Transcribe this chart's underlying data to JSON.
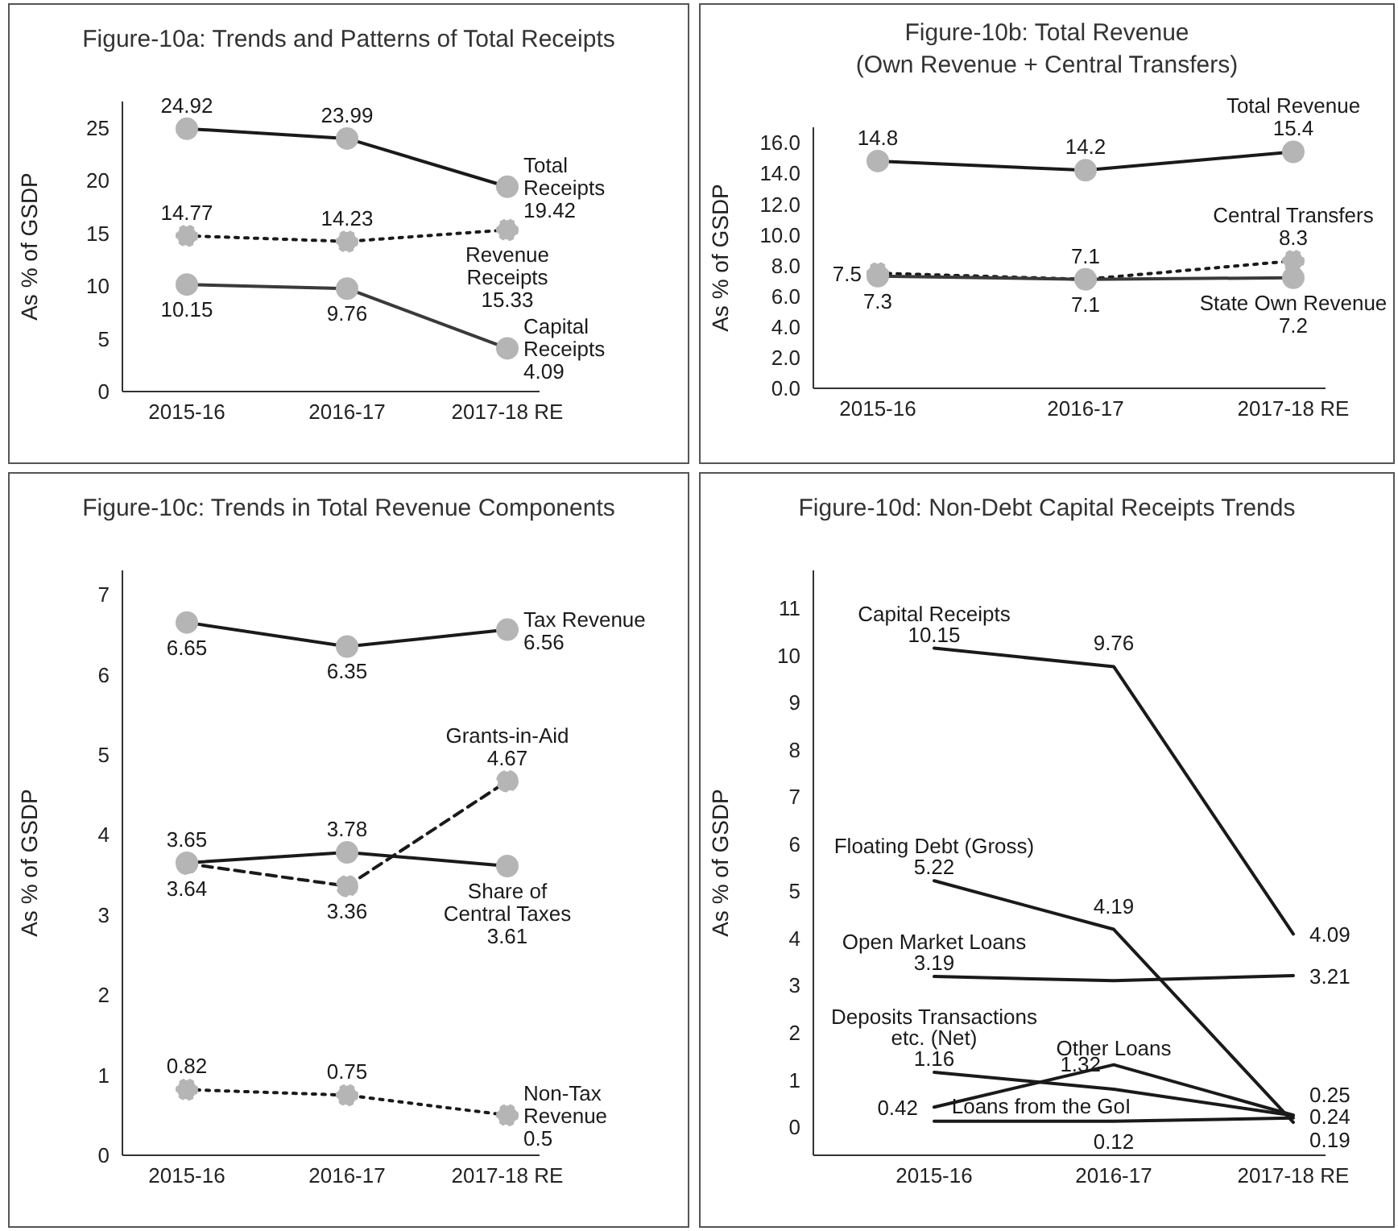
{
  "chart_data": [
    {
      "type": "line",
      "title": "Figure-10a: Trends and Patterns of Total Receipts",
      "ylabel": "As % of GSDP",
      "categories": [
        "2015-16",
        "2016-17",
        "2017-18 RE"
      ],
      "ylim": [
        0,
        27.5
      ],
      "yticks": [
        0,
        5,
        10,
        15,
        20,
        25
      ],
      "marker": "circle",
      "data_labels": true,
      "series": [
        {
          "name": "Total Receipts",
          "color": "#1a1a1a",
          "line_style": "solid",
          "values": [
            24.92,
            23.99,
            19.42
          ]
        },
        {
          "name": "Revenue Receipts",
          "color": "#1a1a1a",
          "line_style": "dotted",
          "values": [
            14.77,
            14.23,
            15.33
          ]
        },
        {
          "name": "Capital Receipts",
          "color": "#3a3a3a",
          "line_style": "solid",
          "values": [
            10.15,
            9.76,
            4.09
          ]
        }
      ]
    },
    {
      "type": "line",
      "title": "Figure-10b: Total Revenue",
      "subtitle": "(Own Revenue + Central Transfers)",
      "ylabel": "As % of GSDP",
      "categories": [
        "2015-16",
        "2016-17",
        "2017-18 RE"
      ],
      "ylim": [
        0,
        17
      ],
      "yticks": [
        {
          "value": 0,
          "label": "0.0"
        },
        {
          "value": 2,
          "label": "2.0"
        },
        {
          "value": 4,
          "label": "4.0"
        },
        {
          "value": 6,
          "label": "6.0"
        },
        {
          "value": 8,
          "label": "8.0"
        },
        {
          "value": 10,
          "label": "10.0"
        },
        {
          "value": 12,
          "label": "12.0"
        },
        {
          "value": 14,
          "label": "14.0"
        },
        {
          "value": 16,
          "label": "16.0"
        }
      ],
      "marker": "circle",
      "data_labels": true,
      "series": [
        {
          "name": "Total Revenue",
          "color": "#1a1a1a",
          "line_style": "solid",
          "values": [
            14.8,
            14.2,
            15.4
          ]
        },
        {
          "name": "Central Transfers",
          "color": "#1a1a1a",
          "line_style": "dotted",
          "values": [
            7.5,
            7.1,
            8.3
          ]
        },
        {
          "name": "State Own Revenue",
          "color": "#3a3a3a",
          "line_style": "solid",
          "values": [
            7.3,
            7.1,
            7.2
          ]
        }
      ]
    },
    {
      "type": "line",
      "title": "Figure-10c: Trends in Total Revenue Components",
      "ylabel": "As % of GSDP",
      "categories": [
        "2015-16",
        "2016-17",
        "2017-18 RE"
      ],
      "ylim": [
        0,
        7.3
      ],
      "yticks": [
        0,
        1,
        2,
        3,
        4,
        5,
        6,
        7
      ],
      "marker": "circle",
      "data_labels": true,
      "series": [
        {
          "name": "Tax Revenue",
          "color": "#1a1a1a",
          "line_style": "solid",
          "values": [
            6.65,
            6.35,
            6.56
          ]
        },
        {
          "name": "Grants-in-Aid",
          "color": "#1a1a1a",
          "line_style": "dashed",
          "values": [
            3.64,
            3.36,
            4.67
          ]
        },
        {
          "name": "Share of Central Taxes",
          "color": "#1a1a1a",
          "line_style": "solid",
          "values": [
            3.65,
            3.78,
            3.61
          ]
        },
        {
          "name": "Non-Tax Revenue",
          "color": "#1a1a1a",
          "line_style": "dotted",
          "values": [
            0.82,
            0.75,
            0.5
          ]
        }
      ]
    },
    {
      "type": "line",
      "title": "Figure-10d: Non-Debt Capital Receipts Trends",
      "ylabel": "As % of GSDP",
      "categories": [
        "2015-16",
        "2016-17",
        "2017-18 RE"
      ],
      "ylim": [
        -0.6,
        11.8
      ],
      "yticks": [
        0,
        1,
        2,
        3,
        4,
        5,
        6,
        7,
        8,
        9,
        10,
        11
      ],
      "series": [
        {
          "name": "Capital Receipts",
          "color": "#1a1a1a",
          "line_style": "solid",
          "values": [
            10.15,
            9.76,
            4.09
          ],
          "value_labels": [
            "10.15",
            "9.76",
            "4.09"
          ]
        },
        {
          "name": "Floating Debt (Gross)",
          "color": "#1a1a1a",
          "line_style": "solid",
          "values": [
            5.22,
            4.19,
            0.1
          ],
          "value_labels": [
            "5.22",
            "4.19",
            null
          ]
        },
        {
          "name": "Open Market Loans",
          "color": "#1a1a1a",
          "line_style": "solid",
          "values": [
            3.19,
            3.1,
            3.21
          ],
          "value_labels": [
            "3.19",
            null,
            "3.21"
          ]
        },
        {
          "name": "Deposits Transactions etc. (Net)",
          "color": "#1a1a1a",
          "line_style": "solid",
          "values": [
            1.16,
            0.8,
            0.24
          ],
          "value_labels": [
            "1.16",
            null,
            "0.24"
          ]
        },
        {
          "name": "Other Loans",
          "color": "#1a1a1a",
          "line_style": "solid",
          "values": [
            0.42,
            1.32,
            0.25
          ],
          "value_labels": [
            "0.42",
            "1.32",
            "0.25"
          ]
        },
        {
          "name": "Loans from the GoI",
          "color": "#1a1a1a",
          "line_style": "solid",
          "values": [
            0.12,
            0.12,
            0.19
          ],
          "value_labels": [
            null,
            "0.12",
            "0.19"
          ]
        }
      ]
    }
  ]
}
